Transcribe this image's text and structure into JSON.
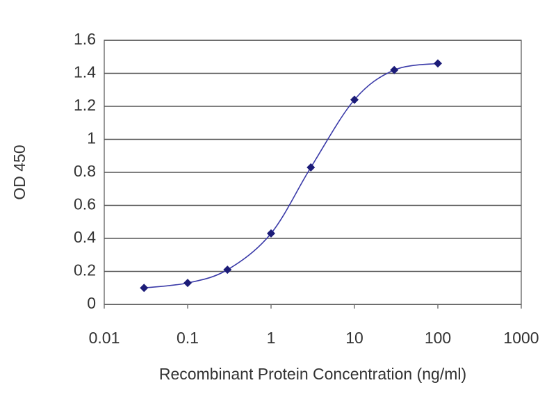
{
  "chart_data": {
    "type": "line",
    "xlabel": "Recombinant Protein Concentration (ng/ml)",
    "ylabel": "OD 450",
    "x": [
      0.03,
      0.1,
      0.3,
      1,
      3,
      10,
      30,
      100
    ],
    "series": [
      {
        "color": "#1c1c78",
        "values": [
          0.1,
          0.13,
          0.21,
          0.43,
          0.83,
          1.24,
          1.42,
          1.46
        ]
      }
    ],
    "xscale": "log",
    "xlim": [
      0.01,
      1000
    ],
    "xticks": [
      0.01,
      0.1,
      1,
      10,
      100,
      1000
    ],
    "ylim": [
      0,
      1.6
    ],
    "yticks": [
      0,
      0.2,
      0.4,
      0.6,
      0.8,
      1,
      1.2,
      1.4,
      1.6
    ],
    "grid": true
  }
}
